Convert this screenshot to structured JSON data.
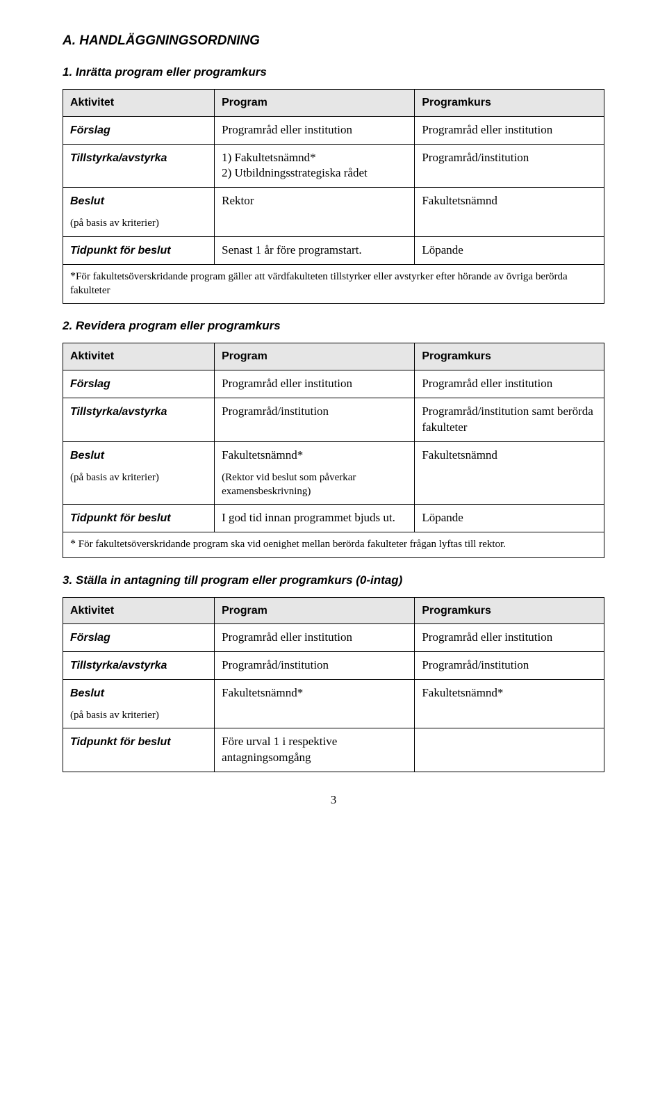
{
  "mainHeading": "A. HANDLÄGGNINGSORDNING",
  "pageNumber": "3",
  "sections": [
    {
      "heading": "1. Inrätta program eller programkurs",
      "header": {
        "c1": "Aktivitet",
        "c2": "Program",
        "c3": "Programkurs"
      },
      "rows": [
        {
          "c1_label": "Förslag",
          "c2": "Programråd eller institution",
          "c3": "Programråd eller institution"
        },
        {
          "c1_label": "Tillstyrka/avstyrka",
          "c2": "1) Fakultetsnämnd*\n2) Utbildningsstrategiska rådet",
          "c3": "Programråd/institution"
        },
        {
          "c1_label": "Beslut",
          "c1_sub": "(på basis av kriterier)",
          "c2": "Rektor",
          "c3": "Fakultetsnämnd"
        },
        {
          "c1_label": "Tidpunkt för beslut",
          "c2": "Senast 1 år före programstart.",
          "c3": "Löpande"
        }
      ],
      "footnote": "För fakultetsöverskridande program gäller att värdfakulteten tillstyrker eller avstyrker efter hörande av övriga berörda fakulteter"
    },
    {
      "heading": "2. Revidera program eller programkurs",
      "header": {
        "c1": "Aktivitet",
        "c2": "Program",
        "c3": "Programkurs"
      },
      "rows": [
        {
          "c1_label": "Förslag",
          "c2": "Programråd eller institution",
          "c3": "Programråd eller institution"
        },
        {
          "c1_label": "Tillstyrka/avstyrka",
          "c2": "Programråd/institution",
          "c3": "Programråd/institution samt berörda fakulteter"
        },
        {
          "c1_label": "Beslut",
          "c1_sub": "(på basis av kriterier)",
          "c2": "Fakultetsnämnd*",
          "c2_sub": "(Rektor vid beslut som påverkar examensbeskrivning)",
          "c3": "Fakultetsnämnd"
        },
        {
          "c1_label": "Tidpunkt för beslut",
          "c2": "I god tid innan programmet bjuds ut.",
          "c3": "Löpande"
        }
      ],
      "footnote": " För fakultetsöverskridande program ska vid oenighet mellan berörda fakulteter frågan lyftas till rektor."
    },
    {
      "heading": "3. Ställa in antagning till program eller programkurs (0-intag)",
      "header": {
        "c1": "Aktivitet",
        "c2": "Program",
        "c3": "Programkurs"
      },
      "rows": [
        {
          "c1_label": "Förslag",
          "c2": "Programråd eller institution",
          "c3": "Programråd eller institution"
        },
        {
          "c1_label": "Tillstyrka/avstyrka",
          "c2": "Programråd/institution",
          "c3": "Programråd/institution"
        },
        {
          "c1_label": "Beslut",
          "c1_sub": "(på basis av kriterier)",
          "c2": "Fakultetsnämnd*",
          "c3": "Fakultetsnämnd*"
        },
        {
          "c1_label": "Tidpunkt för beslut",
          "c2": "Före urval 1 i respektive antagningsomgång",
          "c3": ""
        }
      ]
    }
  ]
}
